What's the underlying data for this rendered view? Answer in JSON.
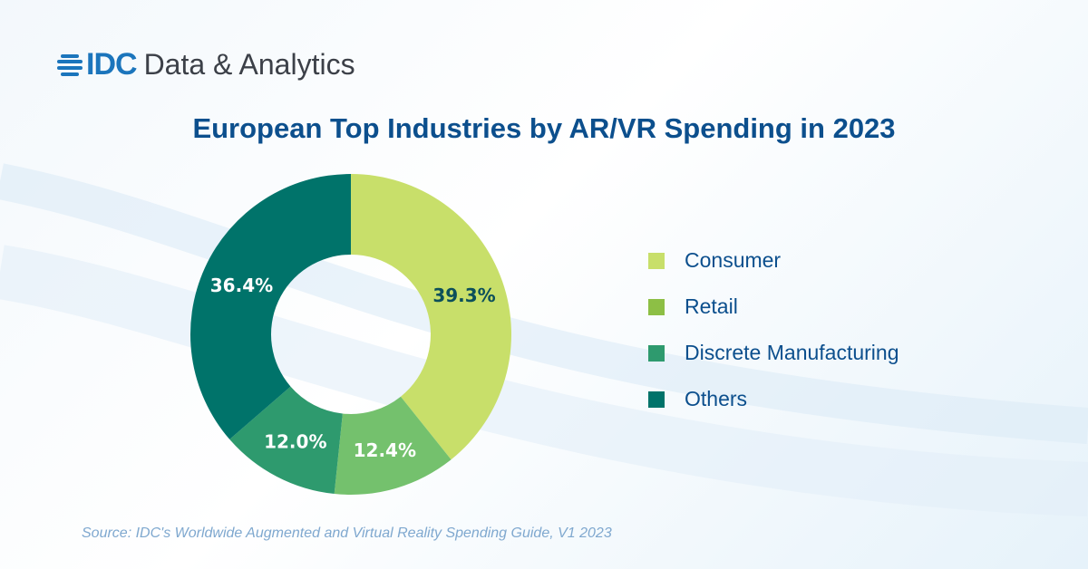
{
  "logo": {
    "brand": "IDC",
    "subtitle": "Data & Analytics"
  },
  "chart_data": {
    "type": "pie",
    "title": "European Top Industries by AR/VR Spending in 2023",
    "donut": true,
    "categories": [
      "Consumer",
      "Retail",
      "Discrete Manufacturing",
      "Others"
    ],
    "values": [
      39.3,
      12.4,
      12.0,
      36.4
    ],
    "labels": [
      "39.3%",
      "12.4%",
      "12.0%",
      "36.4%"
    ],
    "colors": [
      "#c8df6a",
      "#74c16d",
      "#2e9a6e",
      "#00736a"
    ],
    "legend_colors": [
      "#c8df6a",
      "#8dbf45",
      "#2e9a6e",
      "#00736a"
    ],
    "label_colors": [
      "#0c4f5a",
      "#ffffff",
      "#ffffff",
      "#ffffff"
    ],
    "legend": "right"
  },
  "source": "Source: IDC's Worldwide Augmented and Virtual Reality Spending Guide, V1 2023"
}
